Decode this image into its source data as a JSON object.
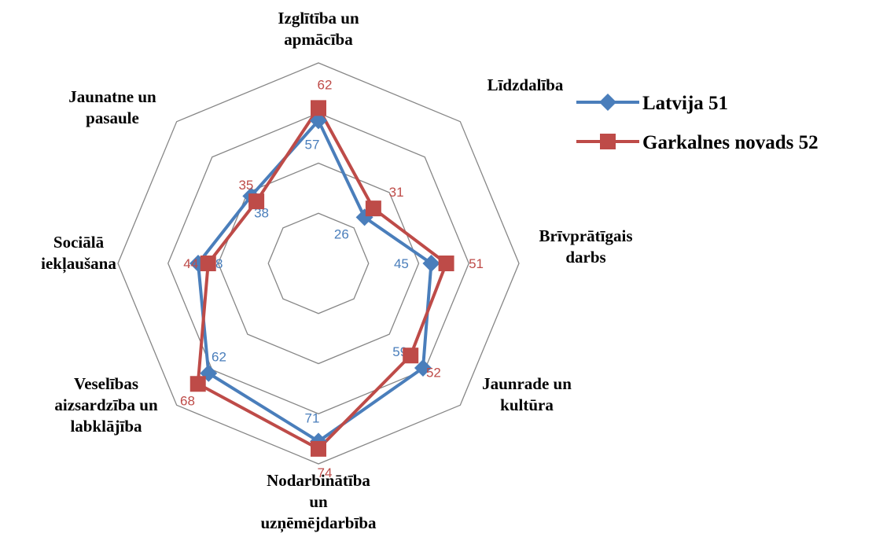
{
  "chart_data": {
    "type": "radar",
    "categories": [
      [
        "Izglītība un",
        "apmācība"
      ],
      [
        "Līdzdalība"
      ],
      [
        "Brīvprātīgais",
        "darbs"
      ],
      [
        "Jaunrade un",
        "kultūra"
      ],
      [
        "Nodarbinātība",
        "un",
        "uzņēmējdarbība"
      ],
      [
        "Veselības",
        "aizsardzība un",
        "labklājība"
      ],
      [
        "Sociālā",
        "iekļaušana"
      ],
      [
        "Jaunatne un",
        "pasaule"
      ]
    ],
    "series": [
      {
        "name": "Latvija 51",
        "color": "#4a7ebb",
        "marker": "diamond",
        "values": [
          57,
          26,
          45,
          59,
          71,
          62,
          48,
          38
        ]
      },
      {
        "name": "Garkalnes novads 52",
        "color": "#be4b48",
        "marker": "square",
        "values": [
          62,
          31,
          51,
          52,
          74,
          68,
          44,
          35
        ]
      }
    ],
    "rlim": [
      0,
      80
    ],
    "rticks": [
      0,
      20,
      40,
      60,
      80
    ],
    "grid": true,
    "legend": "upper right"
  }
}
